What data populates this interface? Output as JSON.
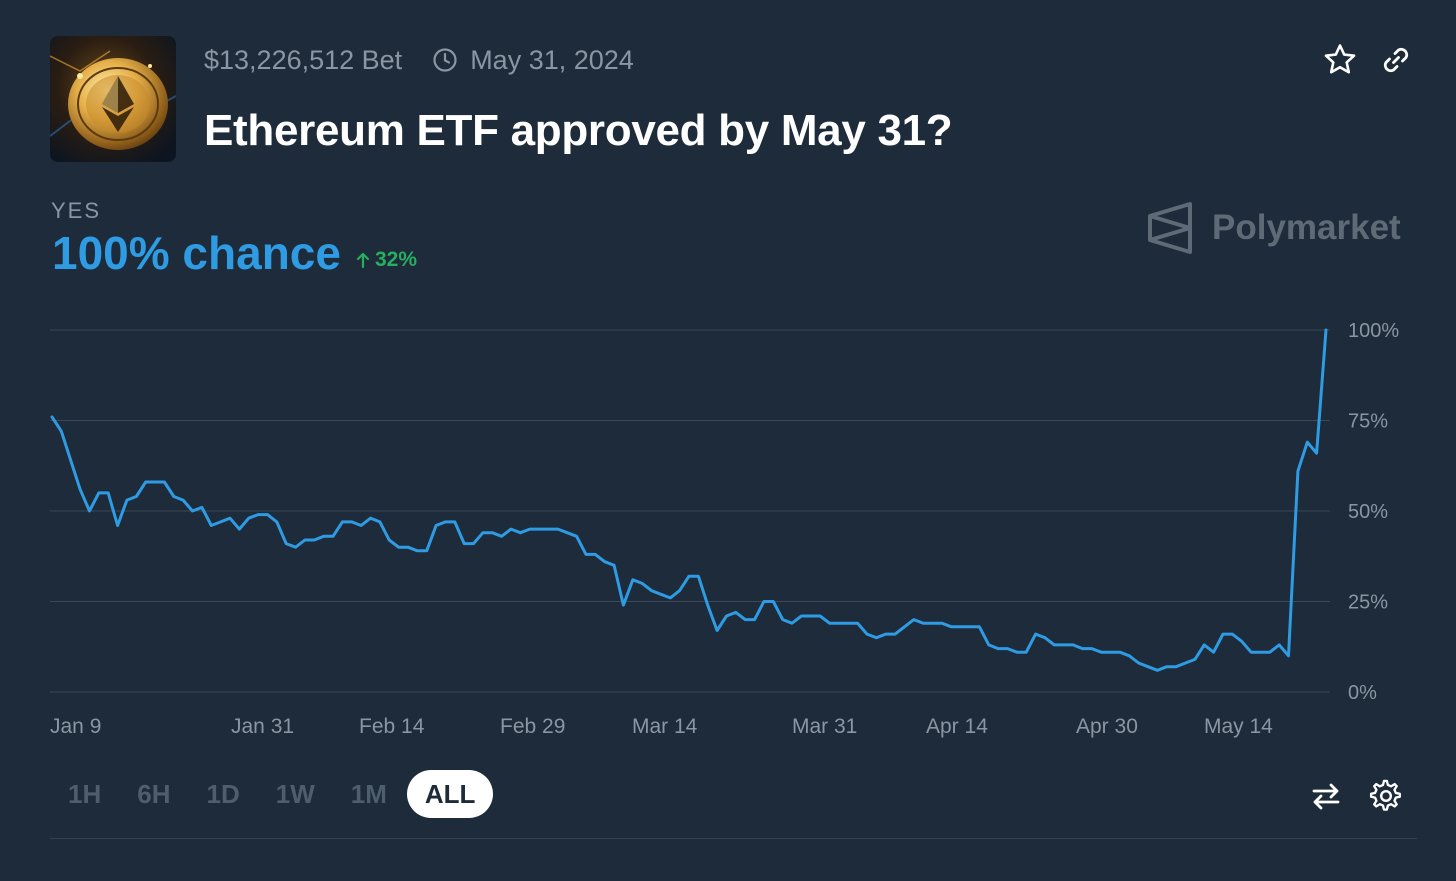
{
  "market": {
    "volume": "$13,226,512 Bet",
    "end_date": "May 31, 2024",
    "title": "Ethereum ETF approved by May 31?",
    "thumbnail_icon": "ethereum-coin-image"
  },
  "outcome": {
    "label": "YES",
    "chance": "100% chance",
    "change": "32%"
  },
  "brand": {
    "name": "Polymarket"
  },
  "time_ranges": {
    "h1": "1H",
    "h6": "6H",
    "d1": "1D",
    "w1": "1W",
    "m1": "1M",
    "all": "ALL",
    "selected": "ALL"
  },
  "colors": {
    "background": "#1d2b3a",
    "line": "#2e9be3",
    "positive": "#27ae60"
  },
  "chart_data": {
    "type": "line",
    "x_tick_labels": [
      "Jan 9",
      "Jan 31",
      "Feb 14",
      "Feb 29",
      "Mar 14",
      "Mar 31",
      "Apr 14",
      "Apr 30",
      "May 14"
    ],
    "y_tick_labels": [
      "100%",
      "75%",
      "50%",
      "25%",
      "0%"
    ],
    "ylim": [
      0,
      100
    ],
    "grid": true,
    "y_axis_side": "right",
    "series": [
      {
        "values": [
          76,
          72,
          64,
          56,
          50,
          55,
          55,
          46,
          53,
          54,
          58,
          58,
          58,
          54,
          53,
          50,
          51,
          46,
          47,
          48,
          45,
          48,
          49,
          49,
          47,
          41,
          40,
          42,
          42,
          43,
          43,
          47,
          47,
          46,
          48,
          47,
          42,
          40,
          40,
          39,
          39,
          46,
          47,
          47,
          41,
          41,
          44,
          44,
          43,
          45,
          44,
          45,
          45,
          45,
          45,
          44,
          43,
          38,
          38,
          36,
          35,
          24,
          31,
          30,
          28,
          27,
          26,
          28,
          32,
          32,
          24,
          17,
          21,
          22,
          20,
          20,
          25,
          25,
          20,
          19,
          21,
          21,
          21,
          19,
          19,
          19,
          19,
          16,
          15,
          16,
          16,
          18,
          20,
          19,
          19,
          19,
          18,
          18,
          18,
          18,
          13,
          12,
          12,
          11,
          11,
          16,
          15,
          13,
          13,
          13,
          12,
          12,
          11,
          11,
          11,
          10,
          8,
          7,
          6,
          7,
          7,
          8,
          9,
          13,
          11,
          16,
          16,
          14,
          11,
          11,
          11,
          13,
          10,
          61,
          69,
          66,
          100
        ]
      }
    ]
  }
}
